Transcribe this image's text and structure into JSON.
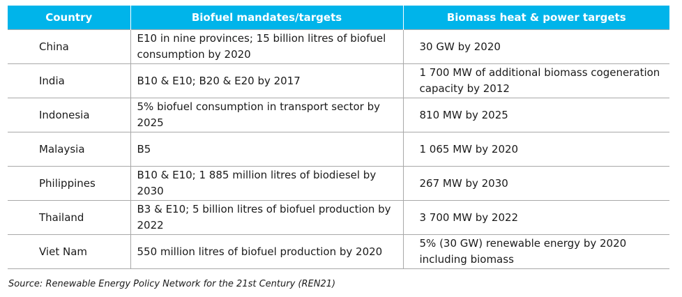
{
  "table": {
    "headers": [
      "Country",
      "Biofuel mandates/targets",
      "Biomass heat & power targets"
    ],
    "rows": [
      [
        "China",
        "E10 in nine provinces; 15 billion litres of biofuel consumption by 2020",
        "30 GW by 2020"
      ],
      [
        "India",
        " B10 & E10; B20 & E20 by 2017",
        "1 700 MW of additional biomass cogeneration capacity by 2012"
      ],
      [
        "Indonesia",
        "5% biofuel consumption in transport sector by 2025",
        "810 MW by 2025"
      ],
      [
        "Malaysia",
        "B5",
        "1 065 MW by 2020"
      ],
      [
        "Philippines",
        "B10 & E10; 1 885 million litres of biodiesel by 2030",
        "267 MW by 2030"
      ],
      [
        "Thailand",
        "B3 & E10; 5 billion litres of biofuel production by 2022",
        "3 700 MW by 2022"
      ],
      [
        "Viet Nam",
        "550 million litres of biofuel production by 2020",
        "5% (30 GW) renewable energy by 2020 including biomass"
      ]
    ]
  },
  "source": "Source: Renewable Energy Policy Network for the 21st Century (REN21)",
  "colors": {
    "header_bg": "#00b4ea",
    "header_text": "#ffffff",
    "row_border": "#a8a8a8"
  }
}
